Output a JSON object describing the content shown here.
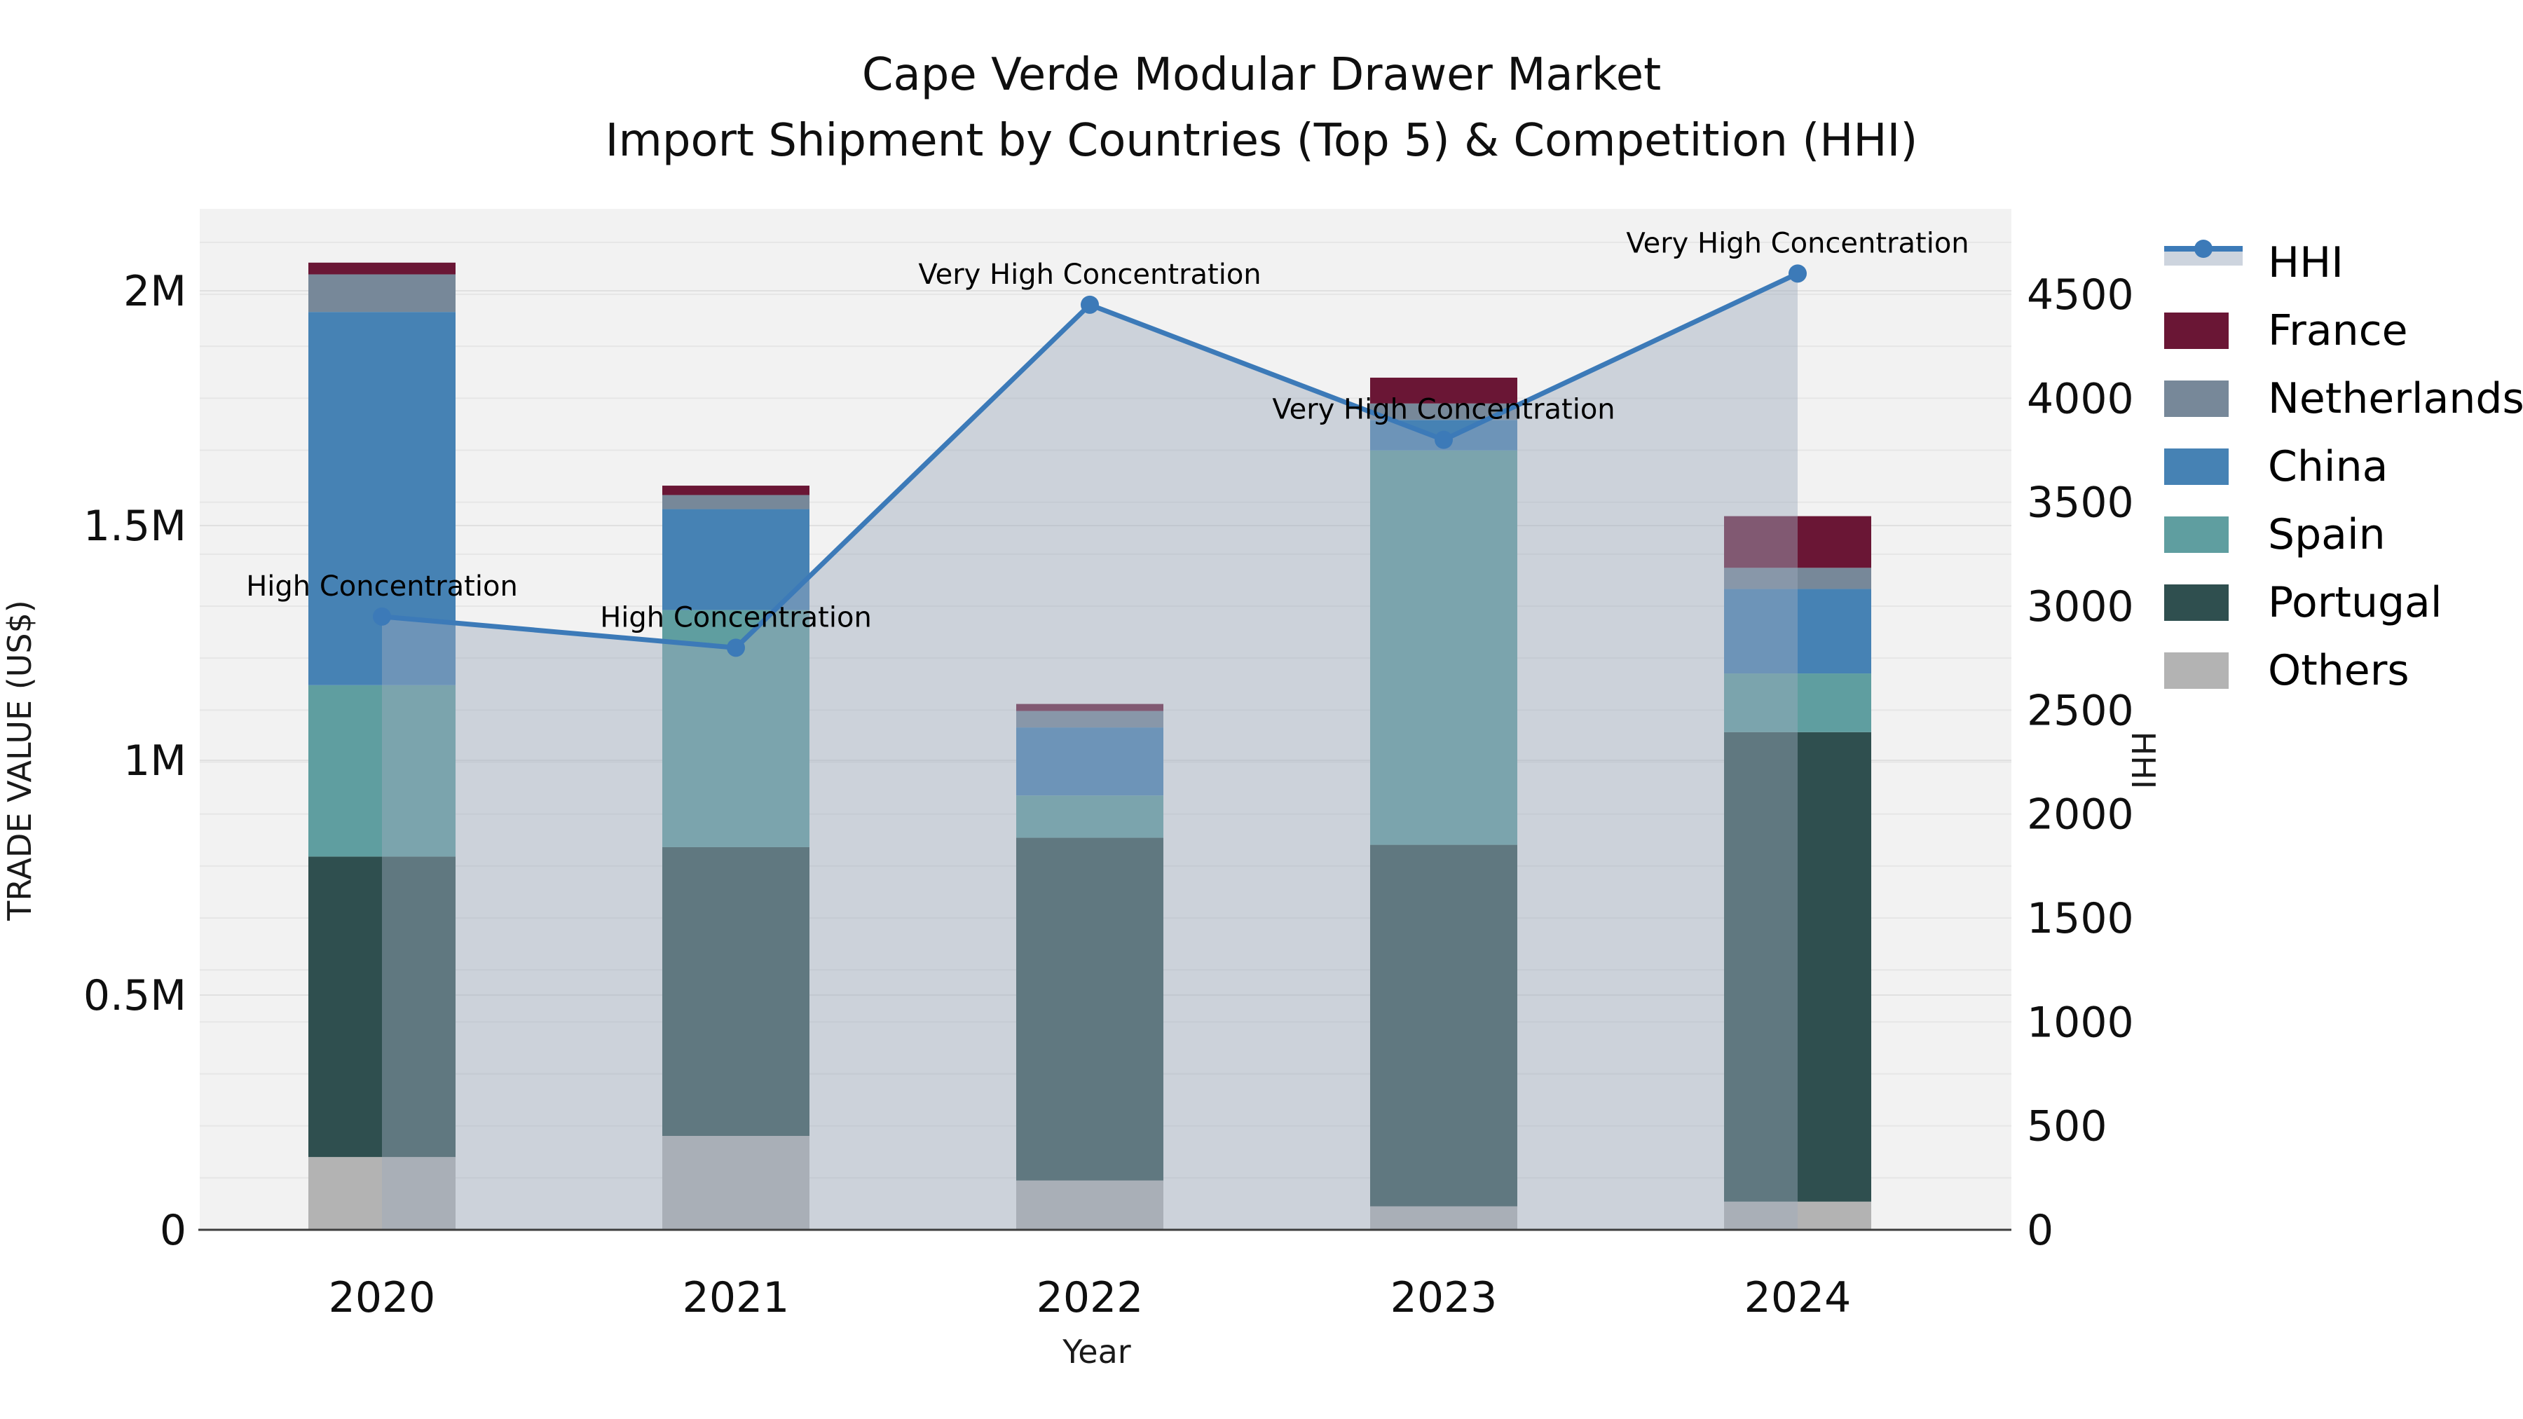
{
  "title": {
    "line1": "Cape Verde Modular Drawer Market",
    "line2": "Import Shipment by Countries (Top 5) & Competition (HHI)"
  },
  "axes": {
    "x": {
      "title": "Year",
      "tick_labels": [
        "2020",
        "2021",
        "2022",
        "2023",
        "2024"
      ]
    },
    "y_left": {
      "title": "TRADE VALUE (US$)",
      "tick_labels": [
        "0",
        "0.5M",
        "1M",
        "1.5M",
        "2M"
      ],
      "tick_values": [
        0,
        500000,
        1000000,
        1500000,
        2000000
      ]
    },
    "y_right": {
      "title": "HHI",
      "tick_labels": [
        "0",
        "500",
        "1000",
        "1500",
        "2000",
        "2500",
        "3000",
        "3500",
        "4000",
        "4500"
      ],
      "tick_values": [
        0,
        500,
        1000,
        1500,
        2000,
        2500,
        3000,
        3500,
        4000,
        4500
      ]
    }
  },
  "chart_data": {
    "type": "combo",
    "subtype": "stacked-bar (left axis) + area-line (right axis)",
    "categories": [
      "2020",
      "2021",
      "2022",
      "2023",
      "2024"
    ],
    "bar_series": [
      {
        "name": "France",
        "color": "#6a1635",
        "values": [
          25000,
          20000,
          15000,
          55000,
          110000
        ]
      },
      {
        "name": "Netherlands",
        "color": "#778899",
        "values": [
          80000,
          30000,
          35000,
          35000,
          45000
        ]
      },
      {
        "name": "China",
        "color": "#4682b4",
        "values": [
          795000,
          215000,
          145000,
          65000,
          180000
        ]
      },
      {
        "name": "Spain",
        "color": "#5f9ea0",
        "values": [
          365000,
          505000,
          90000,
          840000,
          125000
        ]
      },
      {
        "name": "Portugal",
        "color": "#2f4f4f",
        "values": [
          640000,
          615000,
          730000,
          770000,
          1000000
        ]
      },
      {
        "name": "Others",
        "color": "#b3b3b3",
        "values": [
          155000,
          200000,
          105000,
          50000,
          60000
        ]
      }
    ],
    "stack_order_bottom_to_top": [
      "Others",
      "Portugal",
      "Spain",
      "China",
      "Netherlands",
      "France"
    ],
    "bar_totals": [
      2060000,
      1585000,
      1120000,
      1815000,
      1520000
    ],
    "line_series": {
      "name": "HHI",
      "color": "#3c7ab8",
      "area_fill": "rgba(158,170,188,0.45)",
      "values": [
        2950,
        2800,
        4450,
        3800,
        4600
      ]
    },
    "annotations": [
      "High Concentration",
      "High Concentration",
      "Very High Concentration",
      "Very High Concentration",
      "Very High Concentration"
    ],
    "title": "Cape Verde Modular Drawer Market — Import Shipment by Countries (Top 5) & Competition (HHI)",
    "xlabel": "Year",
    "ylabel_left": "TRADE VALUE (US$)",
    "ylabel_right": "HHI",
    "y_left_range": [
      0,
      2190000
    ],
    "y_right_range": [
      0,
      4920
    ],
    "grid": true,
    "legend_position": "right",
    "plot_background": "#f2f2f2",
    "grid_color": "#e6e6e6",
    "axis_line_color": "#3d3d3d"
  }
}
